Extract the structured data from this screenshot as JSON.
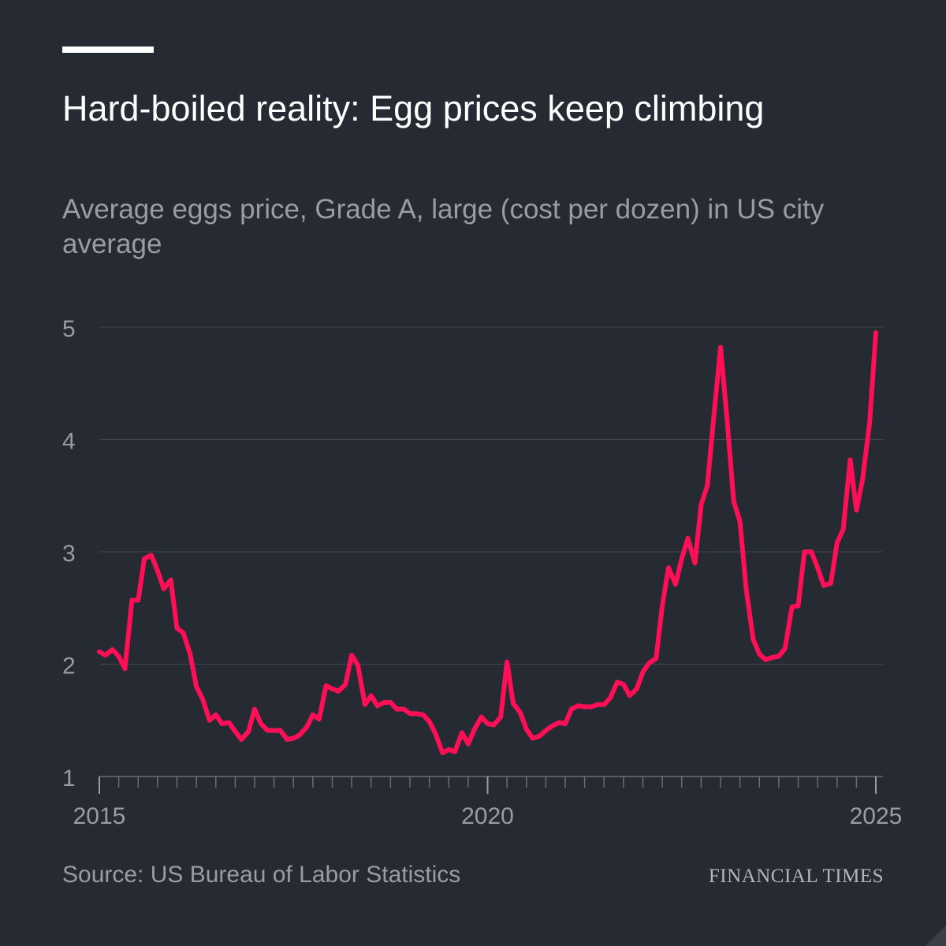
{
  "title": "Hard-boiled reality: Egg prices keep climbing",
  "subtitle": "Average eggs price, Grade A, large (cost per dozen) in US city average",
  "source": "Source: US Bureau of Labor Statistics",
  "brand": "FINANCIAL TIMES",
  "colors": {
    "background": "#262a33",
    "line": "#ff0f56",
    "grid": "#41454e",
    "axis_text": "#9a9ca3"
  },
  "chart_data": {
    "type": "line",
    "title": "Hard-boiled reality: Egg prices keep climbing",
    "xlabel": "",
    "ylabel": "",
    "ylim": [
      1,
      5
    ],
    "yticks": [
      "1",
      "2",
      "3",
      "4",
      "5"
    ],
    "xlim": [
      2015,
      2025
    ],
    "xtick_labels": [
      "2015",
      "2020",
      "2025"
    ],
    "x_tick_values": [
      2015,
      2020,
      2025
    ],
    "grid": true,
    "series": [
      {
        "name": "Average eggs price, Grade A, large (cost per dozen)",
        "x": [
          2015.0,
          2015.08,
          2015.17,
          2015.25,
          2015.33,
          2015.42,
          2015.5,
          2015.58,
          2015.67,
          2015.75,
          2015.83,
          2015.92,
          2016.0,
          2016.08,
          2016.17,
          2016.25,
          2016.33,
          2016.42,
          2016.5,
          2016.58,
          2016.67,
          2016.75,
          2016.83,
          2016.92,
          2017.0,
          2017.08,
          2017.17,
          2017.25,
          2017.33,
          2017.42,
          2017.5,
          2017.58,
          2017.67,
          2017.75,
          2017.83,
          2017.92,
          2018.0,
          2018.08,
          2018.17,
          2018.25,
          2018.33,
          2018.42,
          2018.5,
          2018.58,
          2018.67,
          2018.75,
          2018.83,
          2018.92,
          2019.0,
          2019.08,
          2019.17,
          2019.25,
          2019.33,
          2019.42,
          2019.5,
          2019.58,
          2019.67,
          2019.75,
          2019.83,
          2019.92,
          2020.0,
          2020.08,
          2020.17,
          2020.25,
          2020.33,
          2020.42,
          2020.5,
          2020.58,
          2020.67,
          2020.75,
          2020.83,
          2020.92,
          2021.0,
          2021.08,
          2021.17,
          2021.25,
          2021.33,
          2021.42,
          2021.5,
          2021.58,
          2021.67,
          2021.75,
          2021.83,
          2021.92,
          2022.0,
          2022.08,
          2022.17,
          2022.25,
          2022.33,
          2022.42,
          2022.5,
          2022.58,
          2022.67,
          2022.75,
          2022.83,
          2022.92,
          2023.0,
          2023.08,
          2023.17,
          2023.25,
          2023.33,
          2023.42,
          2023.5,
          2023.58,
          2023.67,
          2023.75,
          2023.83,
          2023.92,
          2024.0,
          2024.08,
          2024.17,
          2024.25,
          2024.33,
          2024.42,
          2024.5,
          2024.58,
          2024.67,
          2024.75,
          2024.83,
          2024.92,
          2025.0
        ],
        "values": [
          2.11,
          2.08,
          2.13,
          2.07,
          1.96,
          2.57,
          2.57,
          2.94,
          2.97,
          2.83,
          2.67,
          2.75,
          2.32,
          2.28,
          2.09,
          1.8,
          1.69,
          1.5,
          1.55,
          1.47,
          1.48,
          1.4,
          1.33,
          1.4,
          1.6,
          1.47,
          1.41,
          1.41,
          1.41,
          1.33,
          1.34,
          1.37,
          1.44,
          1.55,
          1.51,
          1.81,
          1.78,
          1.76,
          1.82,
          2.08,
          1.99,
          1.64,
          1.72,
          1.63,
          1.66,
          1.66,
          1.6,
          1.6,
          1.56,
          1.56,
          1.55,
          1.49,
          1.38,
          1.21,
          1.24,
          1.22,
          1.39,
          1.29,
          1.42,
          1.53,
          1.47,
          1.46,
          1.53,
          2.02,
          1.65,
          1.57,
          1.42,
          1.34,
          1.36,
          1.41,
          1.45,
          1.48,
          1.47,
          1.6,
          1.63,
          1.62,
          1.62,
          1.64,
          1.64,
          1.7,
          1.84,
          1.82,
          1.72,
          1.78,
          1.93,
          2.01,
          2.05,
          2.52,
          2.86,
          2.71,
          2.94,
          3.12,
          2.9,
          3.42,
          3.59,
          4.25,
          4.82,
          4.21,
          3.45,
          3.27,
          2.67,
          2.22,
          2.09,
          2.04,
          2.06,
          2.07,
          2.14,
          2.51,
          2.52,
          3.0,
          3.0,
          2.86,
          2.7,
          2.72,
          3.08,
          3.2,
          3.82,
          3.37,
          3.65,
          4.15,
          4.95
        ]
      }
    ]
  }
}
